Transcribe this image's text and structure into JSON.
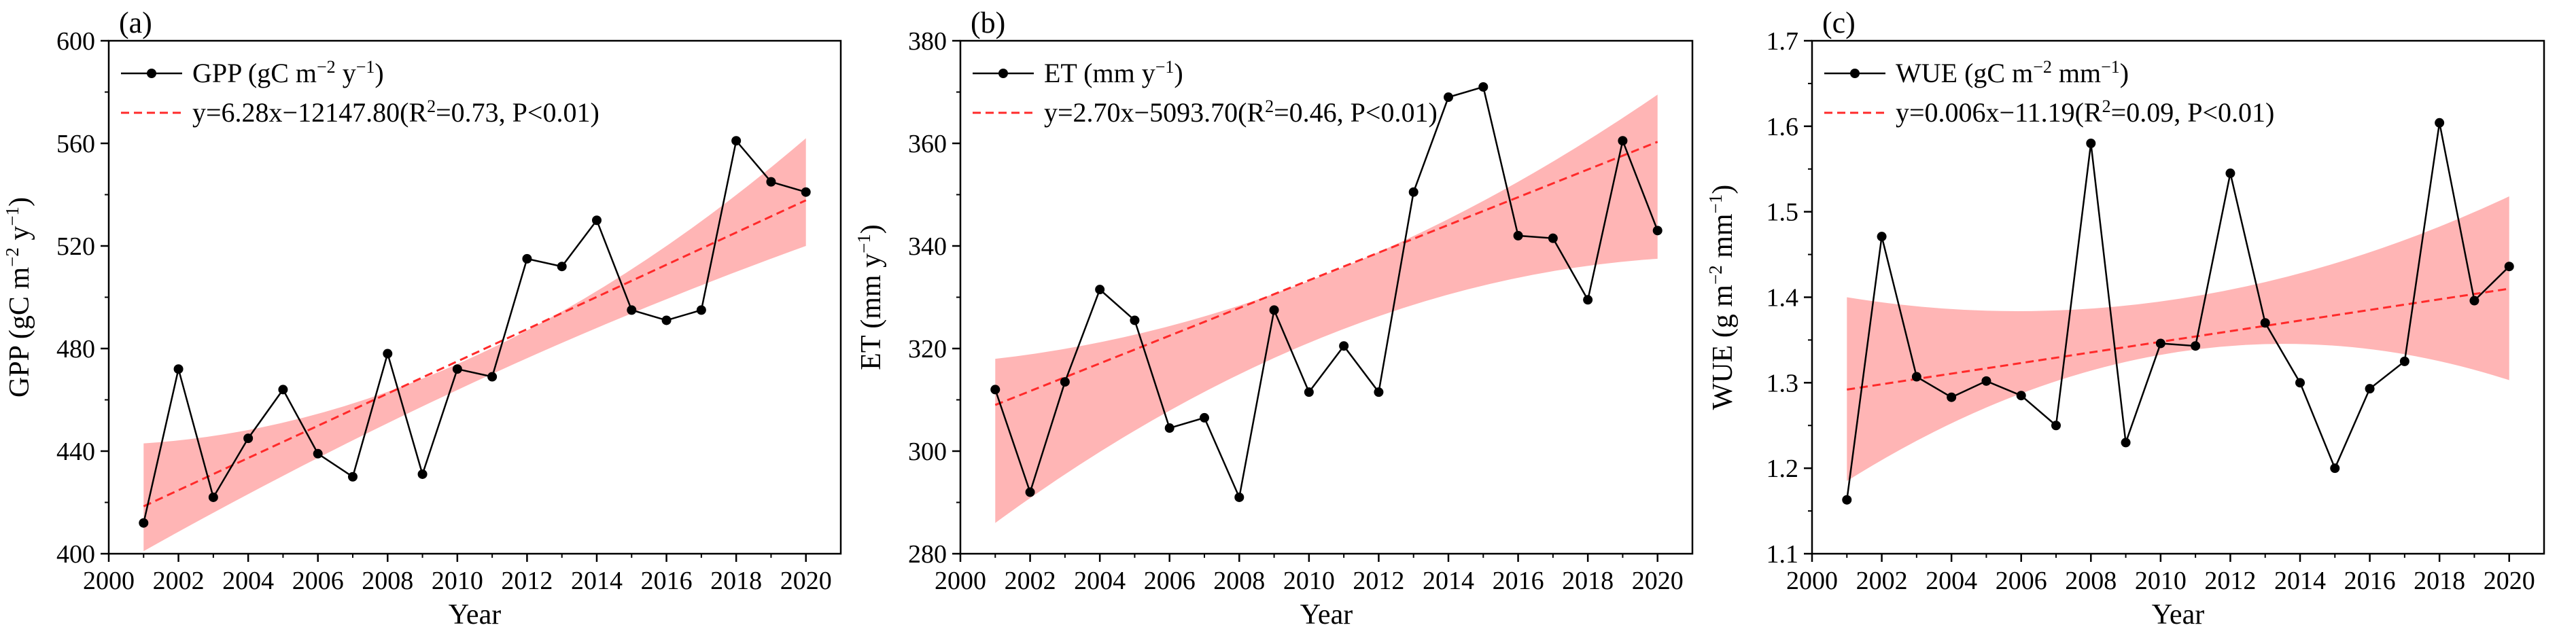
{
  "chart_data": [
    {
      "type": "line",
      "panel_label": "(a)",
      "title": "",
      "xlabel": "Year",
      "ylabel": "GPP (gC m⁻² y⁻¹)",
      "xlim": [
        2000,
        2021
      ],
      "ylim": [
        400,
        600
      ],
      "xticks": [
        2000,
        2002,
        2004,
        2006,
        2008,
        2010,
        2012,
        2014,
        2016,
        2018,
        2020
      ],
      "yticks": [
        400,
        440,
        480,
        520,
        560,
        600
      ],
      "x": [
        2001,
        2002,
        2003,
        2004,
        2005,
        2006,
        2007,
        2008,
        2009,
        2010,
        2011,
        2012,
        2013,
        2014,
        2015,
        2016,
        2017,
        2018,
        2019,
        2020
      ],
      "series": [
        {
          "name": "GPP (gC m⁻² y⁻¹)",
          "values": [
            412,
            472,
            422,
            445,
            464,
            439,
            430,
            478,
            431,
            472,
            469,
            515,
            512,
            530,
            495,
            491,
            495,
            561,
            545,
            541
          ]
        }
      ],
      "fit": {
        "label": "y=6.28x−12147.80(R²=0.73, P<0.01)",
        "slope": 6.28,
        "intercept": -12147.8
      },
      "band": {
        "x": [
          2001,
          2010.5,
          2020
        ],
        "lower": [
          401,
          467,
          520
        ],
        "upper": [
          443,
          477,
          562
        ]
      },
      "legend_position": "top-left",
      "colors": {
        "data": "#000000",
        "fit": "#ff2a2a",
        "band": "#ff9c9c"
      }
    },
    {
      "type": "line",
      "panel_label": "(b)",
      "title": "",
      "xlabel": "Year",
      "ylabel": "ET (mm y⁻¹)",
      "xlim": [
        2000,
        2021
      ],
      "ylim": [
        280,
        380
      ],
      "xticks": [
        2000,
        2002,
        2004,
        2006,
        2008,
        2010,
        2012,
        2014,
        2016,
        2018,
        2020
      ],
      "yticks": [
        280,
        300,
        320,
        340,
        360,
        380
      ],
      "x": [
        2001,
        2002,
        2003,
        2004,
        2005,
        2006,
        2007,
        2008,
        2009,
        2010,
        2011,
        2012,
        2013,
        2014,
        2015,
        2016,
        2017,
        2018,
        2019,
        2020
      ],
      "series": [
        {
          "name": "ET (mm y⁻¹)",
          "values": [
            312,
            292,
            313.5,
            331.5,
            325.5,
            304.5,
            306.5,
            291,
            327.5,
            311.5,
            320.5,
            311.5,
            350.5,
            369,
            371,
            342,
            341.5,
            329.5,
            360.5,
            343
          ]
        }
      ],
      "fit": {
        "label": "y=2.70x−5093.70(R²=0.46, P<0.01)",
        "slope": 2.7,
        "intercept": -5093.7
      },
      "band": {
        "x": [
          2001,
          2010.5,
          2020
        ],
        "lower": [
          286,
          322.5,
          337.5
        ],
        "upper": [
          318,
          334.5,
          369.5
        ]
      },
      "legend_position": "top-left",
      "colors": {
        "data": "#000000",
        "fit": "#ff2a2a",
        "band": "#ff9c9c"
      }
    },
    {
      "type": "line",
      "panel_label": "(c)",
      "title": "",
      "xlabel": "Year",
      "ylabel": "WUE (g m⁻² mm⁻¹)",
      "xlim": [
        2000,
        2021
      ],
      "ylim": [
        1.1,
        1.7
      ],
      "xticks": [
        2000,
        2002,
        2004,
        2006,
        2008,
        2010,
        2012,
        2014,
        2016,
        2018,
        2020
      ],
      "yticks": [
        1.1,
        1.2,
        1.3,
        1.4,
        1.5,
        1.6,
        1.7
      ],
      "x": [
        2001,
        2002,
        2003,
        2004,
        2005,
        2006,
        2007,
        2008,
        2009,
        2010,
        2011,
        2012,
        2013,
        2014,
        2015,
        2016,
        2017,
        2018,
        2019,
        2020
      ],
      "series": [
        {
          "name": "WUE (gC m⁻² mm⁻¹)",
          "values": [
            1.163,
            1.471,
            1.307,
            1.283,
            1.302,
            1.285,
            1.25,
            1.58,
            1.23,
            1.346,
            1.343,
            1.545,
            1.37,
            1.3,
            1.2,
            1.293,
            1.325,
            1.604,
            1.396,
            1.436
          ]
        }
      ],
      "fit": {
        "label": "y=0.006x−11.19(R²=0.09, P<0.01)",
        "slope": 0.006,
        "intercept": -11.19
      },
      "fit_endpoints": {
        "x": [
          2001,
          2020
        ],
        "y": [
          1.292,
          1.41
        ]
      },
      "band": {
        "x": [
          2001,
          2010.5,
          2020
        ],
        "lower": [
          1.185,
          1.336,
          1.303
        ],
        "upper": [
          1.4,
          1.398,
          1.518
        ]
      },
      "legend_position": "top-left",
      "colors": {
        "data": "#000000",
        "fit": "#ff2a2a",
        "band": "#ff9c9c"
      }
    }
  ]
}
